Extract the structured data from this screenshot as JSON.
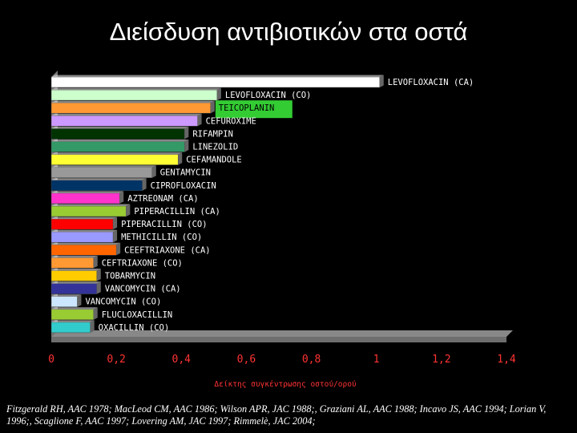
{
  "title": "Διείσδυση αντιβιοτικών στα οστά",
  "references": "Fitzgerald RH, AAC 1978; MacLeod CM, AAC 1986; Wilson APR, JAC 1988;, Graziani AL, AAC 1988; Incavo JS, AAC 1994; Lorian V, 1996;, Scaglione F, AAC 1997; Lovering AM, JAC 1997; Rimmelè, JAC 2004;",
  "chart_data": {
    "type": "bar",
    "orientation": "horizontal",
    "title": "Διείσδυση αντιβιοτικών στα οστά",
    "xlabel": "Δείκτης συγκέντρωσης οστού/ορού",
    "xlim": [
      0,
      1.4
    ],
    "xticks": [
      "0",
      "0,2",
      "0,4",
      "0,6",
      "0,8",
      "1",
      "1,2",
      "1,4"
    ],
    "grid": false,
    "legend": "none",
    "categories": [
      "LEVOFLOXACIN (CA)",
      "LEVOFLOXACIN (CO)",
      "TEICOPLANIN",
      "CEFUROXIME",
      "RIFAMPIN",
      "LINEZOLID",
      "CEFAMANDOLE",
      "GENTAMYCIN",
      "CIPROFLOXACIN",
      "AZTREONAM (CA)",
      "PIPERACILLIN (CA)",
      "PIPERACILLIN (CO)",
      "METHICILLIN (CO)",
      "CEEFTRIAXONE (CA)",
      "CEFTRIAXONE (CO)",
      "TOBARMYCIN",
      "VANCOMYCIN (CA)",
      "VANCOMYCIN (CO)",
      "FLUCLOXACILLIN",
      "OXACILLIN (CO)"
    ],
    "values": [
      1.01,
      0.51,
      0.49,
      0.45,
      0.41,
      0.41,
      0.39,
      0.31,
      0.28,
      0.21,
      0.23,
      0.19,
      0.19,
      0.2,
      0.13,
      0.14,
      0.14,
      0.08,
      0.13,
      0.12
    ],
    "colors": [
      "#ffffff",
      "#ccffcc",
      "#ff9933",
      "#cc99ff",
      "#003300",
      "#339966",
      "#ffff33",
      "#999999",
      "#003366",
      "#ff33cc",
      "#99cc33",
      "#ff0000",
      "#9999ff",
      "#ff6600",
      "#ff9933",
      "#ffcc00",
      "#333399",
      "#cce6ff",
      "#99cc33",
      "#33cccc"
    ],
    "highlight": {
      "category": "TEICOPLANIN",
      "color": "#33cc33"
    }
  }
}
